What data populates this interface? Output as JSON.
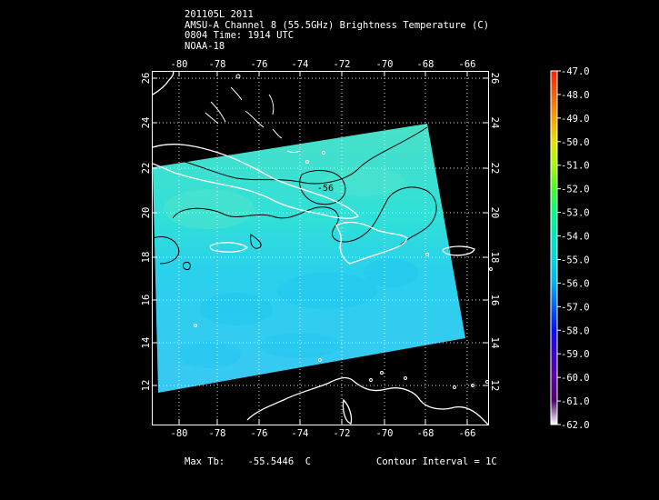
{
  "header": {
    "line1": "201105L 2011",
    "line2": "AMSU-A Channel 8 (55.5GHz) Brightness Temperature (C)",
    "line3": "0804 Time: 1914 UTC",
    "line4": "NOAA-18"
  },
  "map": {
    "lon_ticks_top": [
      "-80",
      "-78",
      "-76",
      "-74",
      "-72",
      "-70",
      "-68",
      "-66"
    ],
    "lon_ticks_bottom": [
      "-80",
      "-78",
      "-76",
      "-74",
      "-72",
      "-70",
      "-68",
      "-66"
    ],
    "lat_ticks_left": [
      "26",
      "24",
      "22",
      "20",
      "18",
      "16",
      "14",
      "12"
    ],
    "lat_ticks_right": [
      "26",
      "24",
      "22",
      "20",
      "18",
      "16",
      "14",
      "12"
    ],
    "contour_label": "-56",
    "swath_color": "#3ed8d8",
    "coastline_color": "#ffffff",
    "contour_color": "#000000"
  },
  "colorbar": {
    "labels": [
      "-47.0",
      "-48.0",
      "-49.0",
      "-50.0",
      "-51.0",
      "-52.0",
      "-53.0",
      "-54.0",
      "-55.0",
      "-56.0",
      "-57.0",
      "-58.0",
      "-59.0",
      "-60.0",
      "-61.0",
      "-62.0"
    ],
    "colors": [
      "#ff2000",
      "#ff6000",
      "#ffa000",
      "#e8e000",
      "#a0ff00",
      "#40ff20",
      "#00ff80",
      "#00e8c0",
      "#00d8e0",
      "#00b0ff",
      "#0060ff",
      "#0010ff",
      "#4000d0",
      "#6000a0",
      "#500070",
      "#ffffff"
    ]
  },
  "footer": {
    "max_tb_label": "Max Tb:",
    "max_tb_value": "-55.5446",
    "max_tb_unit": "C",
    "contour_interval": "Contour Interval = 1C"
  }
}
